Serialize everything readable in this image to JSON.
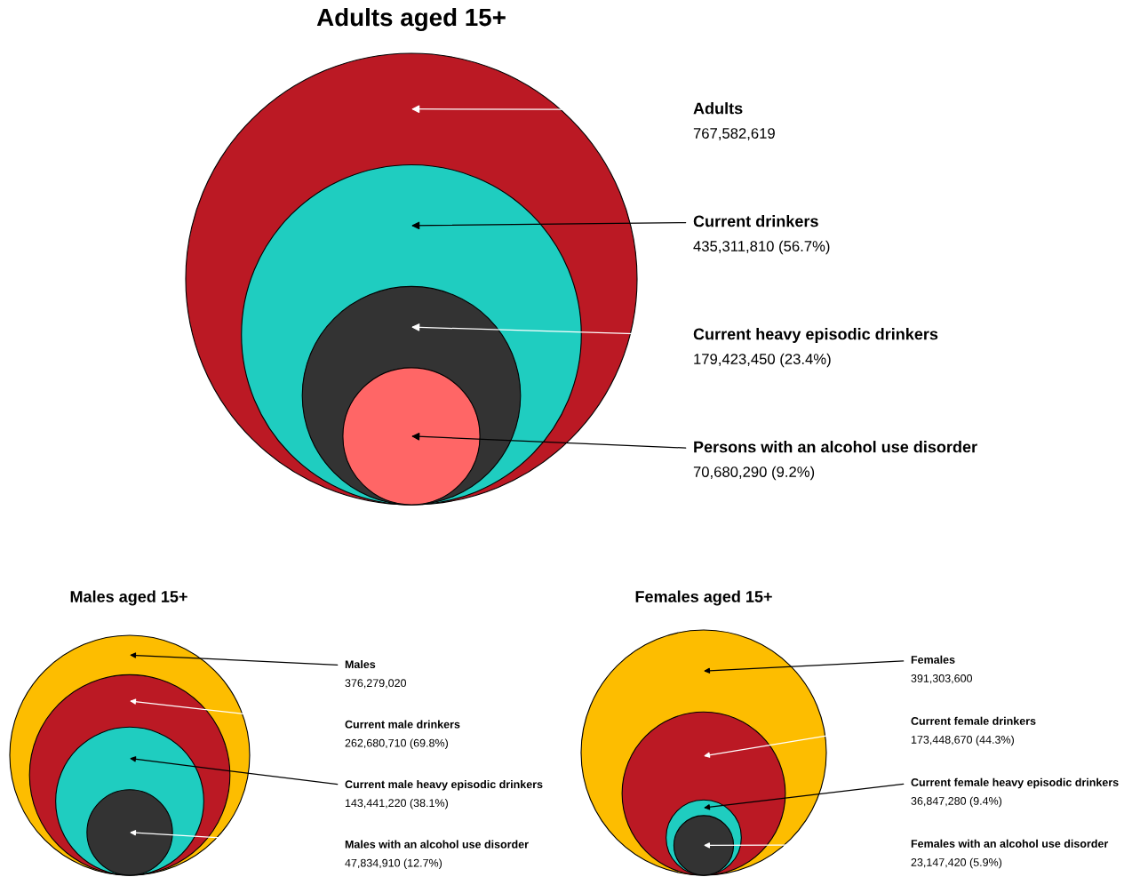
{
  "chart_data": [
    {
      "type": "other",
      "title": "Adults aged 15+",
      "categories": [
        "Adults",
        "Current drinkers",
        "Current heavy episodic drinkers",
        "Persons with an alcohol use disorder"
      ],
      "values": [
        767582619,
        435311810,
        179423450,
        70680290
      ],
      "value_labels": [
        "767,582,619",
        "435,311,810 (56.7%)",
        "179,423,450 (23.4%)",
        "70,680,290 (9.2%)"
      ],
      "colors": [
        "#bb1924",
        "#1fcdc0",
        "#333333",
        "#ff6666"
      ]
    },
    {
      "type": "other",
      "title": "Males aged 15+",
      "categories": [
        "Males",
        "Current male drinkers",
        "Current male heavy episodic drinkers",
        "Males with an alcohol use disorder"
      ],
      "values": [
        376279020,
        262680710,
        143441220,
        47834910
      ],
      "value_labels": [
        "376,279,020",
        "262,680,710 (69.8%)",
        "143,441,220 (38.1%)",
        "47,834,910 (12.7%)"
      ],
      "colors": [
        "#fdbd00",
        "#bb1924",
        "#1fcdc0",
        "#333333"
      ]
    },
    {
      "type": "other",
      "title": "Females aged 15+",
      "categories": [
        "Females",
        "Current female drinkers",
        "Current female heavy episodic drinkers",
        "Females with an alcohol use disorder"
      ],
      "values": [
        391303600,
        173448670,
        36847280,
        23147420
      ],
      "value_labels": [
        "391,303,600",
        "173,448,670 (44.3%)",
        "36,847,280 (9.4%)",
        "23,147,420 (5.9%)"
      ],
      "colors": [
        "#fdbd00",
        "#bb1924",
        "#1fcdc0",
        "#333333"
      ]
    }
  ]
}
